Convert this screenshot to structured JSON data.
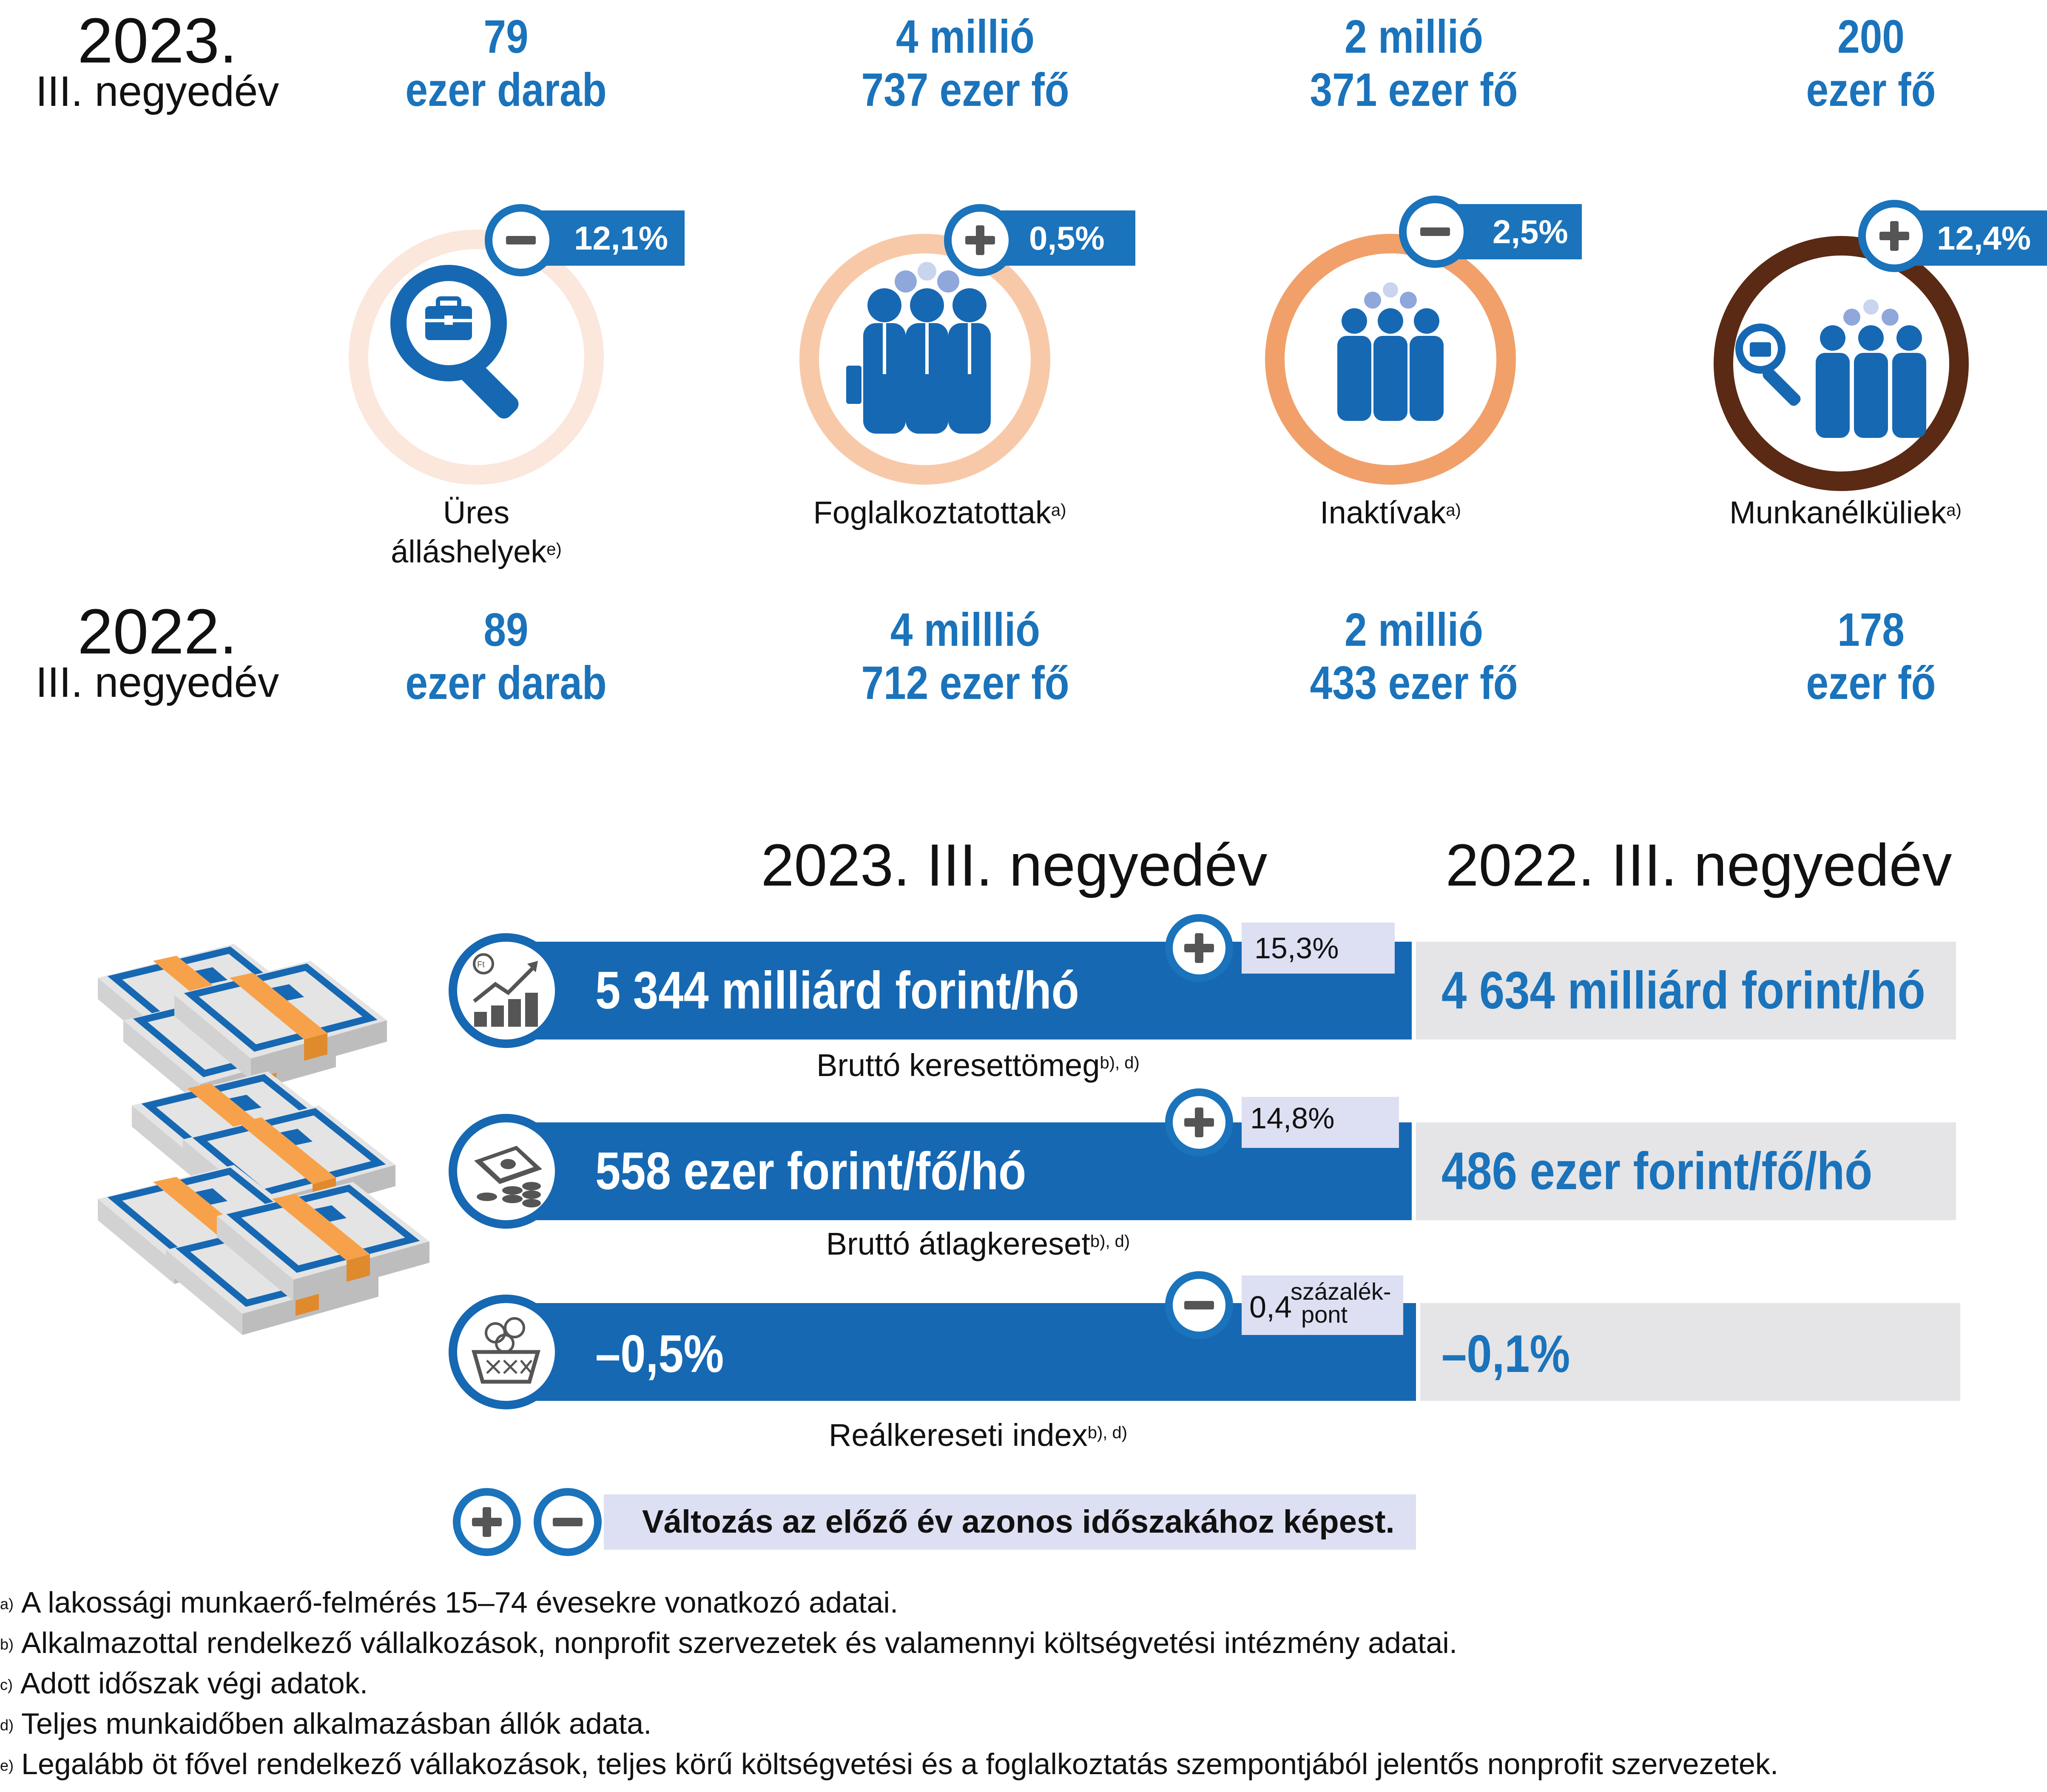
{
  "top": {
    "year_2023": "2023.",
    "period_2023": "III. negyedév",
    "year_2022": "2022.",
    "period_2022": "III. negyedév",
    "indicators": [
      {
        "v23a": "79",
        "v23b": "ezer darab",
        "change_sign": "−",
        "change": "12,1%",
        "label1": "Üres",
        "label2": "álláshelyek",
        "note": "e)",
        "v22a": "89",
        "v22b": "ezer darab",
        "ring_color": "#fbe7dc",
        "icon": "job-search-icon"
      },
      {
        "v23a": "4 millió",
        "v23b": "737 ezer fő",
        "change_sign": "+",
        "change": "0,5%",
        "label1": "Foglalkoztatottak",
        "note": "a)",
        "v22a": "4  milllió",
        "v22b": "712 ezer fő",
        "ring_color": "#f8c9a8",
        "icon": "employees-icon"
      },
      {
        "v23a": "2 millió",
        "v23b": "371 ezer fő",
        "change_sign": "−",
        "change": "2,5%",
        "label1": "Inaktívak",
        "note": "a)",
        "v22a": "2 millió",
        "v22b": "433 ezer fő",
        "ring_color": "#f1a06a",
        "icon": "people-group-icon"
      },
      {
        "v23a": "200",
        "v23b": "ezer fő",
        "change_sign": "+",
        "change": "12,4%",
        "label1": "Munkanélküliek",
        "note": "a)",
        "v22a": "178",
        "v22b": "ezer fő",
        "ring_color": "#5a2a14",
        "icon": "unemployed-search-icon"
      }
    ]
  },
  "wages": {
    "head_2023": "2023. III. negyedév",
    "head_2022": "2022. III. negyedév",
    "rows": [
      {
        "v23": "5 344 milliárd forint/hó",
        "sign": "+",
        "change": "15,3%",
        "v22": "4 634 milliárd forint/hó",
        "label": "Bruttó keresettömeg",
        "note": "b), d)",
        "icon": "growth-chart-icon"
      },
      {
        "v23": "558 ezer forint/fő/hó",
        "sign": "+",
        "change": "14,8%",
        "v22": "486 ezer forint/fő/hó",
        "label": "Bruttó átlagkereset",
        "note": "b), d)",
        "icon": "money-coins-icon"
      },
      {
        "v23": "–0,5%",
        "sign": "−",
        "change": "0,4",
        "change_unit1": "százalék-",
        "change_unit2": "pont",
        "v22": "–0,1%",
        "label": "Reálkereseti index",
        "note": "b), d)",
        "icon": "basket-coins-icon"
      }
    ],
    "legend": "Változás az előző év azonos időszakához képest."
  },
  "footnotes": [
    {
      "mark": "a)",
      "text": "A lakossági munkaerő-felmérés 15–74 évesekre vonatkozó adatai."
    },
    {
      "mark": "b)",
      "text": "Alkalmazottal rendelkező vállalkozások, nonprofit szervezetek és valamennyi költségvetési intézmény adatai."
    },
    {
      "mark": "c)",
      "text": "Adott időszak végi adatok."
    },
    {
      "mark": "d)",
      "text": "Teljes munkaidőben alkalmazásban állók adata."
    },
    {
      "mark": "e)",
      "text": "Legalább öt fővel rendelkező vállakozások, teljes körű költségvetési és a foglalkoztatás szempontjából jelentős nonprofit szervezetek."
    }
  ],
  "colors": {
    "blue": "#1668b3",
    "light_blue": "#1a73bb",
    "grey_bar": "#e5e4e6",
    "chip": "#dddff2"
  }
}
